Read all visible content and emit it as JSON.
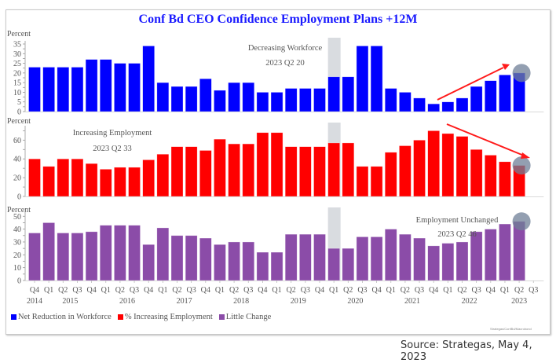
{
  "title": "Conf Bd CEO Confidence Employment Plans +12M",
  "source": "Source:  Strategas, May 4, 2023",
  "credit": "Strategas/ConfBd/Macrobond",
  "chart_data": [
    {
      "type": "bar",
      "name": "Net Reduction in Workforce",
      "color": "#0000ff",
      "ylabel": "Percent",
      "ylim": [
        0,
        35
      ],
      "yticks": [
        0,
        5,
        10,
        15,
        20,
        25,
        30,
        35
      ],
      "annotation": [
        "Decreasing Workforce",
        "2023 Q2 20"
      ],
      "trend_arrow": "up",
      "highlight_last": true,
      "values": [
        23,
        23,
        23,
        23,
        27,
        27,
        25,
        25,
        34,
        15,
        13,
        13,
        17,
        11,
        15,
        15,
        10,
        10,
        12,
        12,
        12,
        18,
        18,
        34,
        34,
        12,
        10,
        7,
        4,
        5,
        7,
        13,
        16,
        19,
        20
      ]
    },
    {
      "type": "bar",
      "name": "% Increasing Employment",
      "color": "#ff0000",
      "ylabel": "Percent",
      "ylim": [
        0,
        72
      ],
      "yticks": [
        0,
        20,
        40,
        60
      ],
      "annotation": [
        "Increasing Employment",
        "2023 Q2 33"
      ],
      "trend_arrow": "down",
      "highlight_last": true,
      "values": [
        40,
        32,
        40,
        40,
        35,
        29,
        31,
        31,
        39,
        45,
        53,
        53,
        49,
        61,
        56,
        56,
        68,
        68,
        53,
        53,
        53,
        57,
        57,
        32,
        32,
        47,
        54,
        60,
        70,
        67,
        64,
        50,
        44,
        37,
        33
      ]
    },
    {
      "type": "bar",
      "name": "Little Change",
      "color": "#8b4ca8",
      "ylabel": "Percent",
      "ylim": [
        0,
        52
      ],
      "yticks": [
        0,
        10,
        20,
        30,
        40,
        50
      ],
      "annotation": [
        "Employment Unchanged",
        "2023 Q2 46"
      ],
      "highlight_last": true,
      "values": [
        37,
        45,
        37,
        37,
        38,
        43,
        43,
        43,
        28,
        41,
        35,
        35,
        33,
        28,
        30,
        30,
        22,
        22,
        36,
        36,
        36,
        25,
        25,
        34,
        34,
        40,
        36,
        33,
        27,
        29,
        30,
        38,
        40,
        44,
        46
      ]
    }
  ],
  "x_quarters": [
    "Q4",
    "Q1",
    "Q2",
    "Q3",
    "Q4",
    "Q1",
    "Q2",
    "Q3",
    "Q4",
    "Q1",
    "Q2",
    "Q3",
    "Q4",
    "Q1",
    "Q2",
    "Q3",
    "Q4",
    "Q1",
    "Q2",
    "Q3",
    "Q4",
    "Q1",
    "Q2",
    "Q3",
    "Q4",
    "Q1",
    "Q2",
    "Q3",
    "Q4",
    "Q1",
    "Q2",
    "Q3",
    "Q4",
    "Q1",
    "Q2",
    "Q3"
  ],
  "x_years": [
    {
      "label": "2014",
      "slot": 0
    },
    {
      "label": "2015",
      "slot": 2.5
    },
    {
      "label": "2016",
      "slot": 6.5
    },
    {
      "label": "2017",
      "slot": 10.5
    },
    {
      "label": "2018",
      "slot": 14.5
    },
    {
      "label": "2019",
      "slot": 18.5
    },
    {
      "label": "2020",
      "slot": 22.5
    },
    {
      "label": "2021",
      "slot": 26.5
    },
    {
      "label": "2022",
      "slot": 30.5
    },
    {
      "label": "2023",
      "slot": 34
    }
  ],
  "recession_slot": 21,
  "legend": [
    {
      "label": "Net Reduction in Workforce",
      "color": "#0000ff"
    },
    {
      "label": "% Increasing Employment",
      "color": "#ff0000"
    },
    {
      "label": "Little Change",
      "color": "#8b4ca8"
    }
  ]
}
